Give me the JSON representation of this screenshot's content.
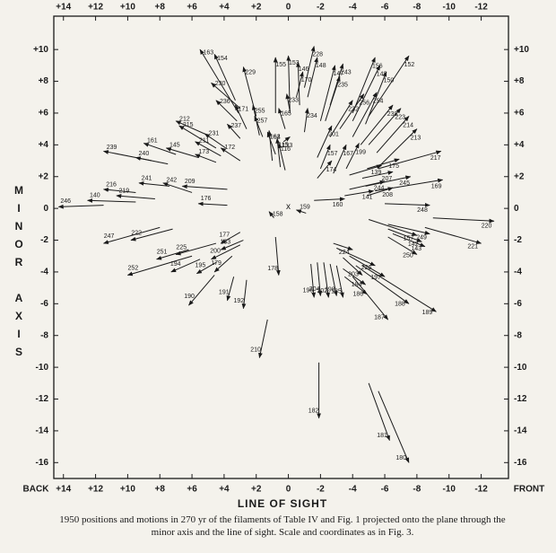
{
  "chart_data": {
    "type": "vector",
    "x_label": "LINE OF SIGHT",
    "y_label": "MINOR AXIS",
    "x_left_label": "BACK",
    "x_right_label": "FRONT",
    "origin_marker": "x",
    "caption": "1950 positions and motions in 270 yr of the filaments of Table IV and Fig. 1 projected onto the plane through the minor axis and the line of sight. Scale and coordinates as in Fig. 3.",
    "xlim": [
      14.6,
      -13.7
    ],
    "ylim": [
      -17.0,
      12.1
    ],
    "xticks": [
      {
        "value": 14,
        "label": "+14"
      },
      {
        "value": 12,
        "label": "+12"
      },
      {
        "value": 10,
        "label": "+10"
      },
      {
        "value": 8,
        "label": "+8"
      },
      {
        "value": 6,
        "label": "+6"
      },
      {
        "value": 4,
        "label": "+4"
      },
      {
        "value": 2,
        "label": "+2"
      },
      0,
      -2,
      -4,
      -6,
      -8,
      -10,
      -12
    ],
    "yticks": [
      {
        "value": 10,
        "label": "+10"
      },
      {
        "value": 8,
        "label": "+8"
      },
      {
        "value": 6,
        "label": "+6"
      },
      {
        "value": 4,
        "label": "+4"
      },
      {
        "value": 2,
        "label": "+2"
      },
      0,
      -2,
      -4,
      -6,
      -8,
      -10,
      -12,
      -14,
      -16
    ],
    "grid": false,
    "color": "#1a1a1a",
    "arrows": [
      {
        "label": "163",
        "x": 3.1,
        "y": 6.0,
        "x_end": 5.5,
        "y_end": 10.0
      },
      {
        "label": "154",
        "x": 3.3,
        "y": 6.8,
        "x_end": 4.6,
        "y_end": 9.7
      },
      {
        "label": "230",
        "x": 3.0,
        "y": 6.3,
        "x_end": 4.8,
        "y_end": 7.9
      },
      {
        "label": "236",
        "x": 3.2,
        "y": 5.5,
        "x_end": 4.5,
        "y_end": 6.8
      },
      {
        "label": "229",
        "x": 2.0,
        "y": 5.8,
        "x_end": 2.8,
        "y_end": 8.9
      },
      {
        "label": "171",
        "x": 2.6,
        "y": 5.0,
        "x_end": 3.3,
        "y_end": 6.5
      },
      {
        "label": "255",
        "x": 1.8,
        "y": 4.6,
        "x_end": 2.2,
        "y_end": 6.5
      },
      {
        "label": "237",
        "x": 3.0,
        "y": 4.4,
        "x_end": 3.8,
        "y_end": 5.3
      },
      {
        "label": "231",
        "x": 3.9,
        "y": 3.8,
        "x_end": 5.2,
        "y_end": 4.7
      },
      {
        "label": "215",
        "x": 4.5,
        "y": 3.8,
        "x_end": 6.8,
        "y_end": 5.2
      },
      {
        "label": "212",
        "x": 5.0,
        "y": 4.6,
        "x_end": 7.0,
        "y_end": 5.5
      },
      {
        "label": "211",
        "x": 4.2,
        "y": 3.3,
        "x_end": 5.8,
        "y_end": 4.2
      },
      {
        "label": "161",
        "x": 7.0,
        "y": 3.4,
        "x_end": 9.0,
        "y_end": 4.1
      },
      {
        "label": "145",
        "x": 5.6,
        "y": 3.2,
        "x_end": 7.6,
        "y_end": 3.8
      },
      {
        "label": "173",
        "x": 4.5,
        "y": 2.9,
        "x_end": 5.8,
        "y_end": 3.4
      },
      {
        "label": "172",
        "x": 3.0,
        "y": 3.0,
        "x_end": 4.2,
        "y_end": 3.8
      },
      {
        "label": "239",
        "x": 8.5,
        "y": 3.0,
        "x_end": 11.5,
        "y_end": 3.6
      },
      {
        "label": "240",
        "x": 7.5,
        "y": 2.8,
        "x_end": 9.5,
        "y_end": 3.2
      },
      {
        "label": "241",
        "x": 7.4,
        "y": 1.4,
        "x_end": 9.3,
        "y_end": 1.6
      },
      {
        "label": "242",
        "x": 6.0,
        "y": 1.0,
        "x_end": 7.8,
        "y_end": 1.6
      },
      {
        "label": "209",
        "x": 3.8,
        "y": 1.2,
        "x_end": 6.6,
        "y_end": 1.4
      },
      {
        "label": "216",
        "x": 9.5,
        "y": 1.0,
        "x_end": 11.5,
        "y_end": 1.2
      },
      {
        "label": "219",
        "x": 8.3,
        "y": 0.6,
        "x_end": 10.7,
        "y_end": 0.8
      },
      {
        "label": "140",
        "x": 9.5,
        "y": 0.4,
        "x_end": 12.5,
        "y_end": 0.5
      },
      {
        "label": "246",
        "x": 11.5,
        "y": 0.2,
        "x_end": 14.3,
        "y_end": 0.1
      },
      {
        "label": "176",
        "x": 3.8,
        "y": 0.2,
        "x_end": 5.6,
        "y_end": 0.3
      },
      {
        "label": "247",
        "x": 8.0,
        "y": -1.2,
        "x_end": 11.5,
        "y_end": -2.2
      },
      {
        "label": "222",
        "x": 7.2,
        "y": -1.3,
        "x_end": 9.8,
        "y_end": -2.0
      },
      {
        "label": "225",
        "x": 4.5,
        "y": -2.2,
        "x_end": 7.0,
        "y_end": -2.9
      },
      {
        "label": "251",
        "x": 6.2,
        "y": -2.6,
        "x_end": 8.2,
        "y_end": -3.2
      },
      {
        "label": "252",
        "x": 6.0,
        "y": -3.0,
        "x_end": 10.0,
        "y_end": -4.2
      },
      {
        "label": "194",
        "x": 5.5,
        "y": -3.2,
        "x_end": 7.3,
        "y_end": -4.0
      },
      {
        "label": "195",
        "x": 4.5,
        "y": -3.4,
        "x_end": 5.7,
        "y_end": -4.1
      },
      {
        "label": "179",
        "x": 3.5,
        "y": -3.0,
        "x_end": 4.6,
        "y_end": -4.0
      },
      {
        "label": "190",
        "x": 4.6,
        "y": -4.2,
        "x_end": 6.2,
        "y_end": -6.1
      },
      {
        "label": "177",
        "x": 3.0,
        "y": -1.5,
        "x_end": 4.2,
        "y_end": -2.2
      },
      {
        "label": "183",
        "x": 2.8,
        "y": -2.0,
        "x_end": 4.2,
        "y_end": -2.6
      },
      {
        "label": "200",
        "x": 3.0,
        "y": -2.3,
        "x_end": 4.8,
        "y_end": -3.2
      },
      {
        "label": "191",
        "x": 3.4,
        "y": -4.3,
        "x_end": 3.8,
        "y_end": -5.8
      },
      {
        "label": "192",
        "x": 2.6,
        "y": -4.5,
        "x_end": 2.8,
        "y_end": -6.3
      },
      {
        "label": "178",
        "x": 0.8,
        "y": -1.8,
        "x_end": 0.6,
        "y_end": -4.2
      },
      {
        "label": "158",
        "x": 0.9,
        "y": -0.6,
        "x_end": 1.2,
        "y_end": -0.2
      },
      {
        "label": "210",
        "x": 1.3,
        "y": -7.0,
        "x_end": 1.8,
        "y_end": -9.4
      },
      {
        "label": "155",
        "x": 0.8,
        "y": 6.0,
        "x_end": 0.8,
        "y_end": 9.5
      },
      {
        "label": "153",
        "x": -0.1,
        "y": 6.0,
        "x_end": 0.0,
        "y_end": 9.6
      },
      {
        "label": "146",
        "x": -0.7,
        "y": 6.5,
        "x_end": -0.6,
        "y_end": 9.2
      },
      {
        "label": "148",
        "x": -1.2,
        "y": 7.0,
        "x_end": -1.8,
        "y_end": 9.5
      },
      {
        "label": "228",
        "x": -1.0,
        "y": 7.6,
        "x_end": -1.6,
        "y_end": 10.2
      },
      {
        "label": "170",
        "x": -0.5,
        "y": 7.0,
        "x_end": -0.9,
        "y_end": 8.6
      },
      {
        "label": "165",
        "x": 0.2,
        "y": 5.0,
        "x_end": 0.6,
        "y_end": 6.3
      },
      {
        "label": "233",
        "x": -0.1,
        "y": 6.1,
        "x_end": 0.1,
        "y_end": 7.2
      },
      {
        "label": "234",
        "x": -1.0,
        "y": 4.8,
        "x_end": -1.2,
        "y_end": 6.3
      },
      {
        "label": "147",
        "x": -2.0,
        "y": 5.5,
        "x_end": -2.9,
        "y_end": 9.0
      },
      {
        "label": "235",
        "x": -2.3,
        "y": 5.5,
        "x_end": -3.2,
        "y_end": 8.3
      },
      {
        "label": "243",
        "x": -2.6,
        "y": 6.5,
        "x_end": -3.4,
        "y_end": 9.1
      },
      {
        "label": "156",
        "x": -4.0,
        "y": 6.0,
        "x_end": -5.4,
        "y_end": 9.5
      },
      {
        "label": "149",
        "x": -4.0,
        "y": 5.5,
        "x_end": -5.7,
        "y_end": 9.0
      },
      {
        "label": "150",
        "x": -4.8,
        "y": 5.3,
        "x_end": -6.1,
        "y_end": 8.6
      },
      {
        "label": "152",
        "x": -5.0,
        "y": 5.8,
        "x_end": -7.5,
        "y_end": 9.6
      },
      {
        "label": "256",
        "x": -3.2,
        "y": 5.0,
        "x_end": -4.7,
        "y_end": 7.2
      },
      {
        "label": "232",
        "x": -2.6,
        "y": 4.5,
        "x_end": -4.0,
        "y_end": 6.8
      },
      {
        "label": "254",
        "x": -4.0,
        "y": 4.5,
        "x_end": -5.5,
        "y_end": 7.3
      },
      {
        "label": "238",
        "x": -4.5,
        "y": 4.0,
        "x_end": -6.5,
        "y_end": 6.5
      },
      {
        "label": "223",
        "x": -5.0,
        "y": 4.0,
        "x_end": -7.0,
        "y_end": 6.3
      },
      {
        "label": "214",
        "x": -5.5,
        "y": 3.5,
        "x_end": -7.5,
        "y_end": 5.8
      },
      {
        "label": "213",
        "x": -5.6,
        "y": 2.6,
        "x_end": -8.0,
        "y_end": 5.0
      },
      {
        "label": "201",
        "x": -1.8,
        "y": 3.2,
        "x_end": -2.7,
        "y_end": 5.2
      },
      {
        "label": "157",
        "x": -2.0,
        "y": 2.5,
        "x_end": -2.6,
        "y_end": 4.0
      },
      {
        "label": "167",
        "x": -2.8,
        "y": 2.2,
        "x_end": -3.6,
        "y_end": 4.0
      },
      {
        "label": "199",
        "x": -3.6,
        "y": 2.5,
        "x_end": -4.4,
        "y_end": 4.1
      },
      {
        "label": "174",
        "x": -1.8,
        "y": 1.9,
        "x_end": -2.7,
        "y_end": 3.0
      },
      {
        "label": "139",
        "x": -3.8,
        "y": 2.1,
        "x_end": -5.8,
        "y_end": 2.7
      },
      {
        "label": "207",
        "x": -4.6,
        "y": 1.9,
        "x_end": -6.5,
        "y_end": 2.3
      },
      {
        "label": "175",
        "x": -4.9,
        "y": 2.5,
        "x_end": -6.9,
        "y_end": 3.1
      },
      {
        "label": "217",
        "x": -5.6,
        "y": 2.5,
        "x_end": -9.5,
        "y_end": 3.6
      },
      {
        "label": "244",
        "x": -3.8,
        "y": 1.2,
        "x_end": -6.0,
        "y_end": 1.7
      },
      {
        "label": "245",
        "x": -4.8,
        "y": 1.4,
        "x_end": -7.6,
        "y_end": 2.0
      },
      {
        "label": "169",
        "x": -5.4,
        "y": 1.1,
        "x_end": -9.6,
        "y_end": 1.8
      },
      {
        "label": "141",
        "x": -3.5,
        "y": 0.8,
        "x_end": -5.3,
        "y_end": 1.1
      },
      {
        "label": "208",
        "x": -4.9,
        "y": 0.8,
        "x_end": -6.5,
        "y_end": 1.3
      },
      {
        "label": "160",
        "x": -1.6,
        "y": 0.5,
        "x_end": -3.5,
        "y_end": 0.6
      },
      {
        "label": "248",
        "x": -6.0,
        "y": 0.3,
        "x_end": -8.8,
        "y_end": 0.2
      },
      {
        "label": "220",
        "x": -9.0,
        "y": -0.6,
        "x_end": -12.8,
        "y_end": -0.8
      },
      {
        "label": "157",
        "x": -5.0,
        "y": -0.7,
        "x_end": -8.0,
        "y_end": -1.7
      },
      {
        "label": "249",
        "x": -6.2,
        "y": -1.0,
        "x_end": -8.8,
        "y_end": -1.6
      },
      {
        "label": "142",
        "x": -6.2,
        "y": -1.3,
        "x_end": -8.3,
        "y_end": -2.1
      },
      {
        "label": "143",
        "x": -6.5,
        "y": -1.6,
        "x_end": -8.5,
        "y_end": -2.4
      },
      {
        "label": "250",
        "x": -6.2,
        "y": -1.8,
        "x_end": -8.0,
        "y_end": -2.9
      },
      {
        "label": "221",
        "x": -8.5,
        "y": -1.2,
        "x_end": -12.0,
        "y_end": -2.2
      },
      {
        "label": "224",
        "x": -2.8,
        "y": -2.2,
        "x_end": -4.0,
        "y_end": -2.6
      },
      {
        "label": "226",
        "x": -3.0,
        "y": -2.5,
        "x_end": -5.4,
        "y_end": -3.6
      },
      {
        "label": "197",
        "x": -3.8,
        "y": -3.0,
        "x_end": -6.0,
        "y_end": -4.3
      },
      {
        "label": "188",
        "x": -4.2,
        "y": -3.6,
        "x_end": -7.5,
        "y_end": -6.0
      },
      {
        "label": "189",
        "x": -4.6,
        "y": -3.6,
        "x_end": -9.2,
        "y_end": -6.5
      },
      {
        "label": "187",
        "x": -4.0,
        "y": -4.3,
        "x_end": -6.2,
        "y_end": -7.0
      },
      {
        "label": "184",
        "x": -3.4,
        "y": -3.8,
        "x_end": -4.8,
        "y_end": -4.8
      },
      {
        "label": "186",
        "x": -3.5,
        "y": -4.3,
        "x_end": -4.9,
        "y_end": -5.4
      },
      {
        "label": "203",
        "x": -3.4,
        "y": -3.1,
        "x_end": -4.6,
        "y_end": -4.2
      },
      {
        "label": "196",
        "x": -1.4,
        "y": -3.5,
        "x_end": -1.6,
        "y_end": -5.6
      },
      {
        "label": "204",
        "x": -1.8,
        "y": -3.4,
        "x_end": -2.0,
        "y_end": -5.5
      },
      {
        "label": "202",
        "x": -2.2,
        "y": -3.4,
        "x_end": -2.5,
        "y_end": -5.6
      },
      {
        "label": "198",
        "x": -2.6,
        "y": -3.5,
        "x_end": -3.0,
        "y_end": -5.5
      },
      {
        "label": "185",
        "x": -3.0,
        "y": -3.6,
        "x_end": -3.4,
        "y_end": -5.6
      },
      {
        "label": "182",
        "x": -1.9,
        "y": -9.7,
        "x_end": -1.9,
        "y_end": -13.2
      },
      {
        "label": "181",
        "x": -5.0,
        "y": -11.0,
        "x_end": -6.3,
        "y_end": -14.6
      },
      {
        "label": "180",
        "x": -5.6,
        "y": -11.5,
        "x_end": -7.5,
        "y_end": -16.0
      },
      {
        "label": "159",
        "x": -1.1,
        "y": -0.3,
        "x_end": -0.5,
        "y_end": -0.1
      },
      {
        "label": "133",
        "x": 0.3,
        "y": 4.2,
        "x_end": -0.1,
        "y_end": 4.5
      },
      {
        "label": "164",
        "x": 1.0,
        "y": 3.0,
        "x_end": 1.2,
        "y_end": 4.9
      },
      {
        "label": "162",
        "x": 0.8,
        "y": 3.4,
        "x_end": 1.3,
        "y_end": 4.8
      },
      {
        "label": "115",
        "x": 0.5,
        "y": 2.6,
        "x_end": 0.7,
        "y_end": 4.4
      },
      {
        "label": "116",
        "x": 0.2,
        "y": 2.4,
        "x_end": 0.6,
        "y_end": 4.1
      },
      {
        "label": "257",
        "x": 1.6,
        "y": 4.5,
        "x_end": 2.1,
        "y_end": 5.8
      }
    ]
  }
}
